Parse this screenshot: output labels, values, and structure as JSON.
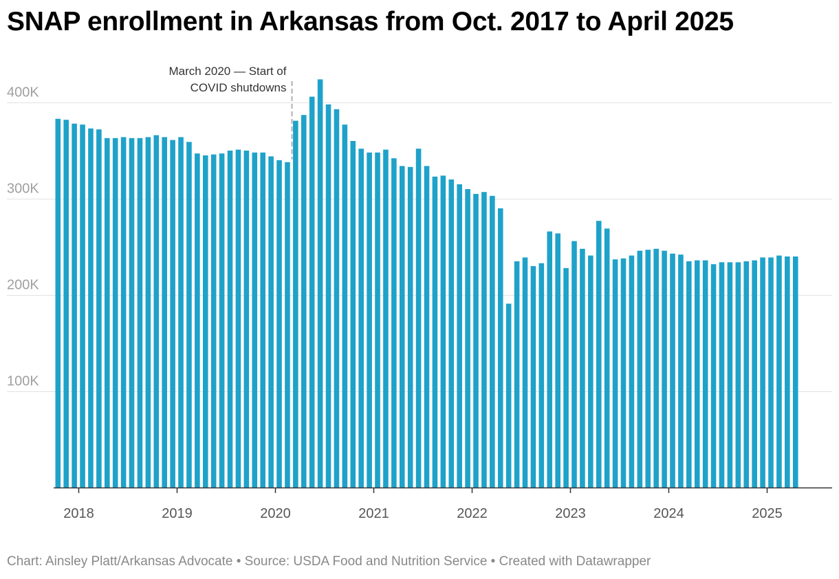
{
  "chart_data": {
    "type": "bar",
    "title": "SNAP enrollment in Arkansas from Oct. 2017 to April 2025",
    "xlabel": "",
    "ylabel": "",
    "ylim": [
      0,
      400000
    ],
    "x_range": [
      "Oct. 2017",
      "April 2025"
    ],
    "start_month": "2017-10",
    "y_ticks": [
      {
        "value": 100000,
        "label": "100K"
      },
      {
        "value": 200000,
        "label": "200K"
      },
      {
        "value": 300000,
        "label": "300K"
      },
      {
        "value": 400000,
        "label": "400K"
      }
    ],
    "x_ticks": [
      {
        "month_index": 3,
        "label": "2018"
      },
      {
        "month_index": 15,
        "label": "2019"
      },
      {
        "month_index": 27,
        "label": "2020"
      },
      {
        "month_index": 39,
        "label": "2021"
      },
      {
        "month_index": 51,
        "label": "2022"
      },
      {
        "month_index": 63,
        "label": "2023"
      },
      {
        "month_index": 75,
        "label": "2024"
      },
      {
        "month_index": 87,
        "label": "2025"
      }
    ],
    "grid": true,
    "bar_color": "#1fa2c9",
    "values": [
      383000,
      382000,
      378000,
      377000,
      373000,
      372000,
      363000,
      363000,
      364000,
      363000,
      363000,
      364000,
      366000,
      364000,
      361000,
      364000,
      359000,
      347000,
      345000,
      346000,
      347000,
      350000,
      351000,
      350000,
      348000,
      348000,
      344000,
      340000,
      338000,
      381000,
      387000,
      406000,
      424000,
      398000,
      393000,
      377000,
      360000,
      352000,
      348000,
      348000,
      351000,
      342000,
      334000,
      333000,
      352000,
      334000,
      323000,
      324000,
      320000,
      315000,
      310000,
      305000,
      307000,
      303000,
      290000,
      191000,
      235000,
      239000,
      230000,
      233000,
      266000,
      264000,
      228000,
      256000,
      248000,
      241000,
      277000,
      269000,
      237000,
      238000,
      241000,
      246000,
      247000,
      248000,
      246000,
      243000,
      242000,
      235000,
      236000,
      236000,
      232000,
      234000,
      234000,
      234000,
      235000,
      236000,
      239000,
      239000,
      241000,
      240000,
      240000
    ],
    "annotation": {
      "month_index": 29,
      "lines": [
        "March 2020 — Start of",
        "COVID shutdowns"
      ]
    }
  },
  "footer": {
    "chart_credit": "Chart: Ainsley Platt/Arkansas Advocate",
    "separator": " • ",
    "source": "Source: USDA Food and Nutrition Service",
    "created_with": "Created with Datawrapper"
  }
}
